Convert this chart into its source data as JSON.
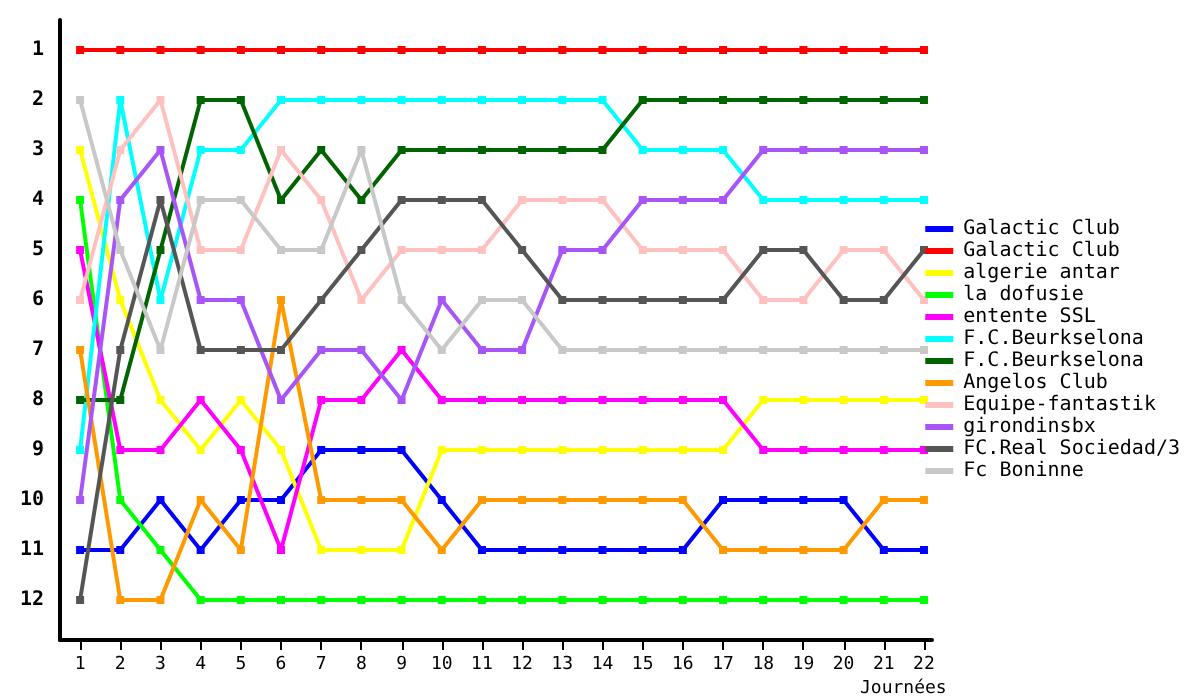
{
  "chart_data": {
    "type": "line",
    "xlabel": "Journées",
    "x": [
      1,
      2,
      3,
      4,
      5,
      6,
      7,
      8,
      9,
      10,
      11,
      12,
      13,
      14,
      15,
      16,
      17,
      18,
      19,
      20,
      21,
      22
    ],
    "xlim": [
      0.5,
      22.2
    ],
    "xticks": [
      1,
      2,
      3,
      4,
      5,
      6,
      7,
      8,
      9,
      10,
      11,
      12,
      13,
      14,
      15,
      16,
      17,
      18,
      19,
      20,
      21,
      22
    ],
    "ylim": [
      12.8,
      0.4
    ],
    "yticks": [
      1,
      2,
      3,
      4,
      5,
      6,
      7,
      8,
      9,
      10,
      11,
      12
    ],
    "grid": false,
    "legend": "right",
    "marker": "square",
    "line_style": "solid",
    "series": [
      {
        "name": "Galactic Club",
        "color": "#0000ff",
        "values": [
          11,
          11,
          10,
          11,
          10,
          10,
          9,
          9,
          9,
          10,
          11,
          11,
          11,
          11,
          11,
          11,
          10,
          10,
          10,
          10,
          11,
          11
        ]
      },
      {
        "name": "Galactic Club",
        "color": "#ff0000",
        "values": [
          1,
          1,
          1,
          1,
          1,
          1,
          1,
          1,
          1,
          1,
          1,
          1,
          1,
          1,
          1,
          1,
          1,
          1,
          1,
          1,
          1,
          1
        ]
      },
      {
        "name": "algerie antar",
        "color": "#ffff00",
        "values": [
          3,
          6,
          8,
          9,
          8,
          9,
          11,
          11,
          11,
          9,
          9,
          9,
          9,
          9,
          9,
          9,
          9,
          8,
          8,
          8,
          8,
          8
        ]
      },
      {
        "name": "la dofusie",
        "color": "#00ff00",
        "values": [
          4,
          10,
          11,
          12,
          12,
          12,
          12,
          12,
          12,
          12,
          12,
          12,
          12,
          12,
          12,
          12,
          12,
          12,
          12,
          12,
          12,
          12
        ]
      },
      {
        "name": "entente SSL",
        "color": "#ff00ff",
        "values": [
          5,
          9,
          9,
          8,
          9,
          11,
          8,
          8,
          7,
          8,
          8,
          8,
          8,
          8,
          8,
          8,
          8,
          9,
          9,
          9,
          9,
          9
        ]
      },
      {
        "name": "F.C.Beurkselona",
        "color": "#00ffff",
        "values": [
          9,
          2,
          6,
          3,
          3,
          2,
          2,
          2,
          2,
          2,
          2,
          2,
          2,
          2,
          3,
          3,
          3,
          4,
          4,
          4,
          4,
          4
        ]
      },
      {
        "name": "F.C.Beurkselona",
        "color": "#006400",
        "values": [
          8,
          8,
          5,
          2,
          2,
          4,
          3,
          4,
          3,
          3,
          3,
          3,
          3,
          3,
          2,
          2,
          2,
          2,
          2,
          2,
          2,
          2
        ]
      },
      {
        "name": "Angelos Club",
        "color": "#ff9900",
        "values": [
          7,
          12,
          12,
          10,
          11,
          6,
          10,
          10,
          10,
          11,
          10,
          10,
          10,
          10,
          10,
          10,
          11,
          11,
          11,
          11,
          10,
          10
        ]
      },
      {
        "name": "Equipe-fantastik",
        "color": "#ffc0c0",
        "values": [
          6,
          3,
          2,
          5,
          5,
          3,
          4,
          6,
          5,
          5,
          5,
          4,
          4,
          4,
          5,
          5,
          5,
          6,
          6,
          5,
          5,
          6
        ]
      },
      {
        "name": "girondinsbx",
        "color": "#a855f7",
        "values": [
          10,
          4,
          3,
          6,
          6,
          8,
          7,
          7,
          8,
          6,
          7,
          7,
          5,
          5,
          4,
          4,
          4,
          3,
          3,
          3,
          3,
          3
        ]
      },
      {
        "name": "FC.Real Sociedad/3",
        "color": "#555555",
        "values": [
          12,
          7,
          4,
          7,
          7,
          7,
          6,
          5,
          4,
          4,
          4,
          5,
          6,
          6,
          6,
          6,
          6,
          5,
          5,
          6,
          6,
          5
        ]
      },
      {
        "name": "Fc Boninne",
        "color": "#c8c8c8",
        "values": [
          2,
          5,
          7,
          4,
          4,
          5,
          5,
          3,
          6,
          7,
          6,
          6,
          7,
          7,
          7,
          7,
          7,
          7,
          7,
          7,
          7,
          7
        ]
      }
    ]
  }
}
